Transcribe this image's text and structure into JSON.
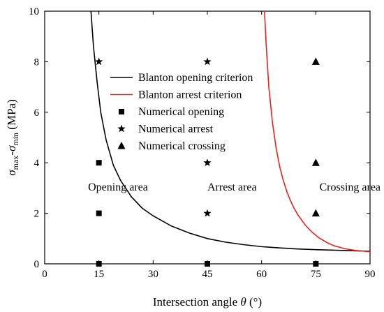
{
  "chart_data": {
    "type": "scatter",
    "title": "",
    "xlabel": {
      "prefix": "Intersection angle ",
      "symbol": "θ",
      "suffix": " (°)"
    },
    "ylabel": {
      "s1": "σ",
      "sub1": "max",
      "mid": "-",
      "s2": "σ",
      "sub2": "min",
      "unit": " (MPa)"
    },
    "xlim": [
      0,
      90
    ],
    "ylim": [
      0,
      10
    ],
    "xticks": [
      0,
      15,
      30,
      45,
      60,
      75,
      90
    ],
    "yticks": [
      0,
      2,
      4,
      6,
      8,
      10
    ],
    "grid": false,
    "legend_position": "top-right",
    "series": [
      {
        "name": "Blanton opening criterion",
        "kind": "line",
        "color": "#000000",
        "x": [
          12.8,
          13.5,
          14.5,
          15.5,
          17,
          19,
          21,
          24,
          27,
          30,
          35,
          40,
          45,
          50,
          55,
          60,
          65,
          70,
          75,
          80,
          85,
          90
        ],
        "y": [
          10.0,
          8.6,
          7.2,
          6.0,
          4.9,
          3.9,
          3.3,
          2.65,
          2.2,
          1.9,
          1.5,
          1.22,
          1.0,
          0.86,
          0.76,
          0.68,
          0.63,
          0.59,
          0.56,
          0.54,
          0.52,
          0.5
        ]
      },
      {
        "name": "Blanton arrest criterion",
        "kind": "line",
        "color": "#e8231f",
        "x": [
          60.8,
          61.3,
          62,
          63,
          64,
          65,
          66,
          67,
          68,
          69,
          70,
          72,
          74,
          76,
          78,
          80,
          83,
          86,
          90
        ],
        "y": [
          10.0,
          8.6,
          7.0,
          5.6,
          4.6,
          3.85,
          3.3,
          2.85,
          2.5,
          2.2,
          1.95,
          1.55,
          1.25,
          1.02,
          0.85,
          0.72,
          0.6,
          0.53,
          0.48
        ]
      },
      {
        "name": "Numerical opening",
        "kind": "scatter",
        "marker": "square",
        "x": [
          15,
          15,
          15,
          45,
          75
        ],
        "y": [
          4,
          2,
          0,
          0,
          0
        ]
      },
      {
        "name": "Numerical arrest",
        "kind": "scatter",
        "marker": "star",
        "x": [
          15,
          45,
          45,
          45
        ],
        "y": [
          8,
          8,
          4,
          2
        ]
      },
      {
        "name": "Numerical crossing",
        "kind": "scatter",
        "marker": "triangle",
        "x": [
          75,
          75,
          75
        ],
        "y": [
          8,
          4,
          2
        ]
      }
    ],
    "annotations": [
      {
        "text": "Opening area",
        "x": 12,
        "y": 2.9
      },
      {
        "text": "Arrest area",
        "x": 45,
        "y": 2.9
      },
      {
        "text": "Crossing area",
        "x": 76,
        "y": 2.9
      }
    ]
  }
}
